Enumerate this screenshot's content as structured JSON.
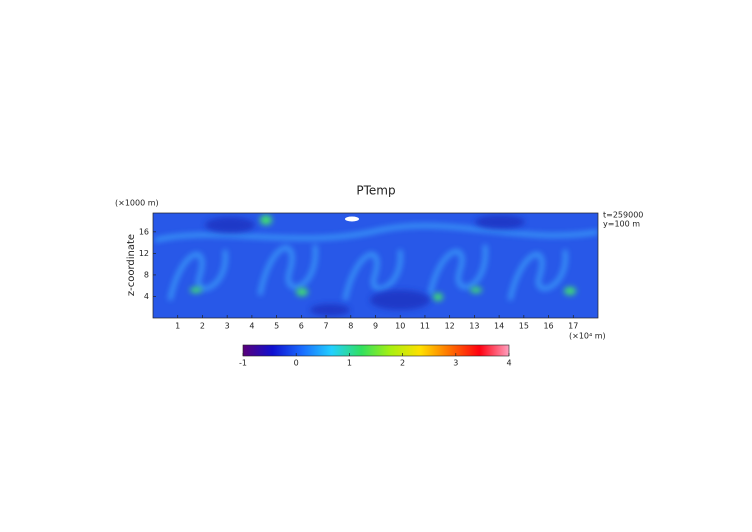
{
  "chart_data": {
    "type": "field",
    "title": "PTemp",
    "ylabel": "z-coordinate",
    "yunit": "(×1000 m)",
    "xunit": "(×10⁴ m)",
    "annotations": [
      "t=259000",
      "y=100 m"
    ],
    "xlim": [
      0,
      18
    ],
    "xticks": [
      1,
      2,
      3,
      4,
      5,
      6,
      7,
      8,
      9,
      10,
      11,
      12,
      13,
      14,
      15,
      16,
      17
    ],
    "ylim": [
      0,
      19.5
    ],
    "yticks": [
      4,
      8,
      12,
      16
    ],
    "colorbar": {
      "lim": [
        -1,
        4
      ],
      "ticks": [
        -1,
        0,
        1,
        2,
        3,
        4
      ],
      "colors": [
        "#5a007a",
        "#1010d0",
        "#1a6cff",
        "#22d0ff",
        "#30e060",
        "#a8f010",
        "#ffe000",
        "#ff7000",
        "#ff0010",
        "#ffa0c0"
      ]
    }
  }
}
